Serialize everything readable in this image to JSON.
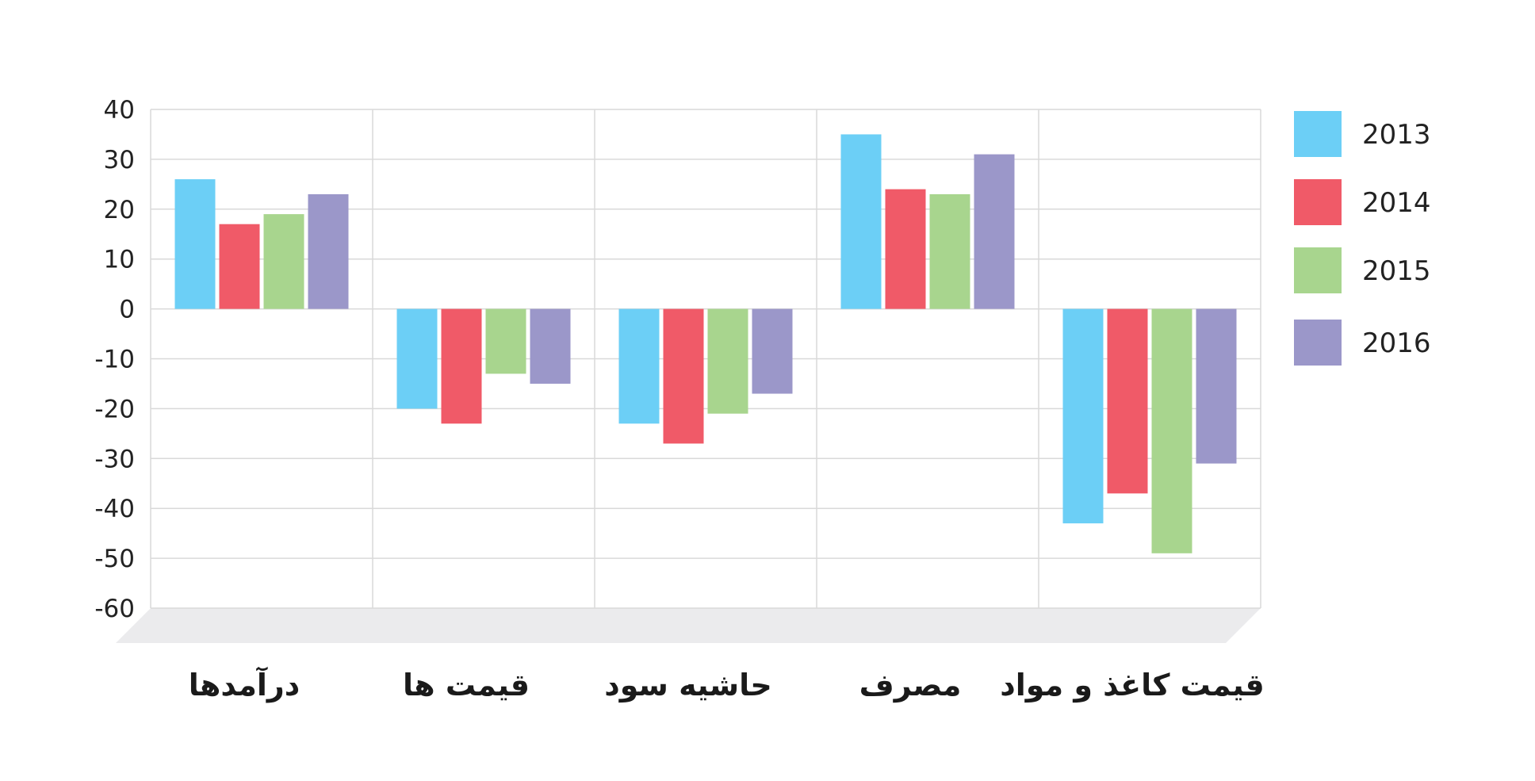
{
  "chart_data": {
    "type": "bar",
    "categories": [
      "درآمدها",
      "قیمت ها",
      "حاشیه سود",
      "مصرف",
      "قیمت کاغذ و مواد"
    ],
    "series": [
      {
        "name": "2013",
        "color": "#6ccff6",
        "values": [
          26,
          -20,
          -23,
          35,
          -43
        ]
      },
      {
        "name": "2014",
        "color": "#f05a68",
        "values": [
          17,
          -23,
          -27,
          24,
          -37
        ]
      },
      {
        "name": "2015",
        "color": "#a8d58e",
        "values": [
          19,
          -13,
          -21,
          23,
          -49
        ]
      },
      {
        "name": "2016",
        "color": "#9b97c9",
        "values": [
          23,
          -15,
          -17,
          31,
          -31
        ]
      }
    ],
    "ylim": [
      -60,
      40
    ],
    "yticks": [
      40,
      30,
      20,
      10,
      0,
      -10,
      -20,
      -30,
      -40,
      -50,
      -60
    ],
    "title": "",
    "xlabel": "",
    "ylabel": "",
    "grid": true,
    "legend_position": "right"
  }
}
